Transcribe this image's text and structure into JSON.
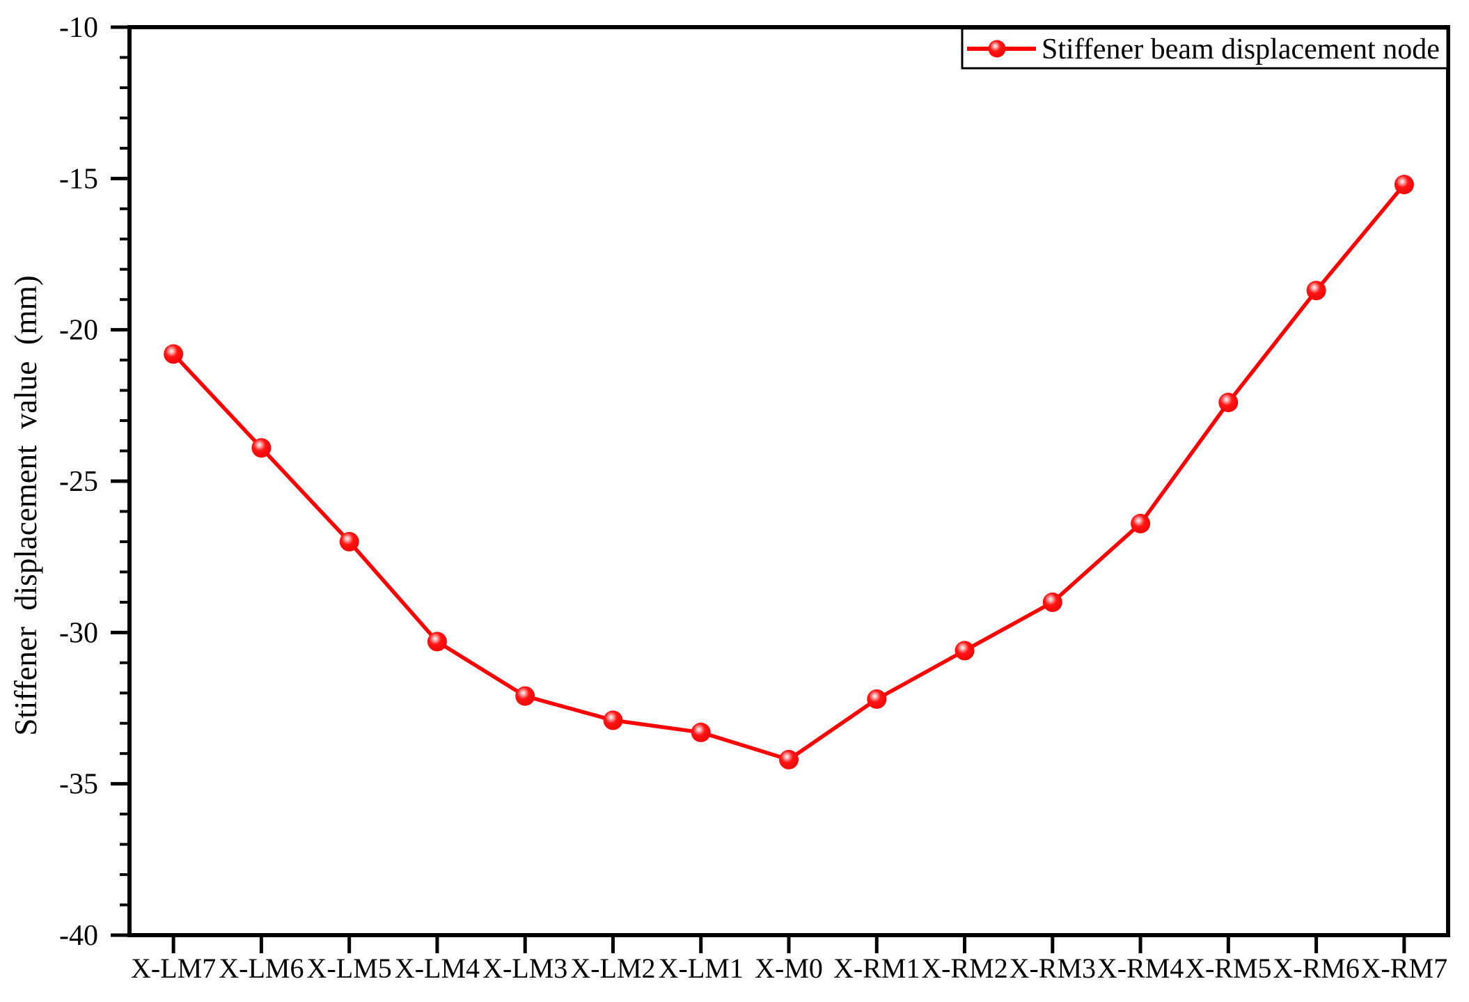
{
  "figure": {
    "background": "#ffffff",
    "accent_color": "#ff0000",
    "axis_color": "#000000"
  },
  "legend": {
    "label": "Stiffener beam displacement node",
    "swatch": "red-line-with-ball-marker",
    "position": "top-right"
  },
  "y_axis": {
    "title": "Stiffener displacement value (mm)",
    "tick_labels": [
      "-10",
      "-15",
      "-20",
      "-25",
      "-30",
      "-35",
      "-40"
    ],
    "min": -40,
    "max": -10,
    "major_step": 5,
    "minor_step": 1
  },
  "x_axis": {
    "categories": [
      "X-LM7",
      "X-LM6",
      "X-LM5",
      "X-LM4",
      "X-LM3",
      "X-LM2",
      "X-LM1",
      "X-M0",
      "X-RM1",
      "X-RM2",
      "X-RM3",
      "X-RM4",
      "X-RM5",
      "X-RM6",
      "X-RM7"
    ]
  },
  "chart_data": {
    "type": "line",
    "title": "",
    "xlabel": "",
    "ylabel": "Stiffener displacement value (mm)",
    "ylim": [
      -40,
      -10
    ],
    "y_major_step": 5,
    "y_minor_step": 1,
    "grid": false,
    "legend_position": "top-right",
    "categories": [
      "X-LM7",
      "X-LM6",
      "X-LM5",
      "X-LM4",
      "X-LM3",
      "X-LM2",
      "X-LM1",
      "X-M0",
      "X-RM1",
      "X-RM2",
      "X-RM3",
      "X-RM4",
      "X-RM5",
      "X-RM6",
      "X-RM7"
    ],
    "series": [
      {
        "name": "Stiffener beam displacement node",
        "color": "#ff0000",
        "marker": "ball-circle",
        "line_style": "solid",
        "values": [
          -20.8,
          -23.9,
          -27.0,
          -30.3,
          -32.1,
          -32.9,
          -33.3,
          -34.2,
          -32.2,
          -30.6,
          -29.0,
          -26.4,
          -22.4,
          -18.7,
          -15.2
        ]
      }
    ]
  }
}
